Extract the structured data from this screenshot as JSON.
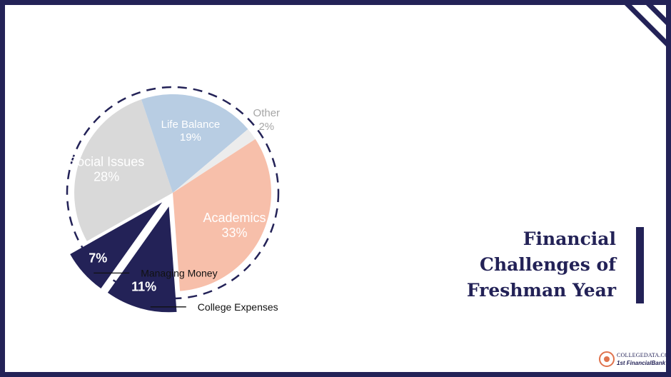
{
  "title": {
    "lines": [
      "Financial",
      "Challenges of",
      "Freshman Year"
    ]
  },
  "chart_data": {
    "type": "pie",
    "exploded_slices": [
      "College Expenses",
      "Managing Money"
    ],
    "slices": [
      {
        "label": "Academics",
        "value": 33,
        "value_label": "33%",
        "color": "#f7bfaa",
        "text_color": "#ffffff"
      },
      {
        "label": "College Expenses",
        "value": 11,
        "value_label": "11%",
        "color": "#232257",
        "text_color": "#ffffff",
        "callout": "College Expenses"
      },
      {
        "label": "Managing Money",
        "value": 7,
        "value_label": "7%",
        "color": "#232257",
        "text_color": "#ffffff",
        "callout": "Managing Money"
      },
      {
        "label": "Social Issues",
        "value": 28,
        "value_label": "28%",
        "color": "#d9d9d9",
        "text_color": "#ffffff"
      },
      {
        "label": "Life Balance",
        "value": 19,
        "value_label": "19%",
        "color": "#b8cde3",
        "text_color": "#ffffff"
      },
      {
        "label": "Other",
        "value": 2,
        "value_label": "2%",
        "color": "#ececec",
        "text_color": "#a6a6a6"
      }
    ]
  },
  "logo": {
    "line1": "COLLEGEDATA.COM",
    "line2": "1st FinancialBank"
  },
  "colors": {
    "accent": "#232257",
    "background": "#ffffff"
  }
}
